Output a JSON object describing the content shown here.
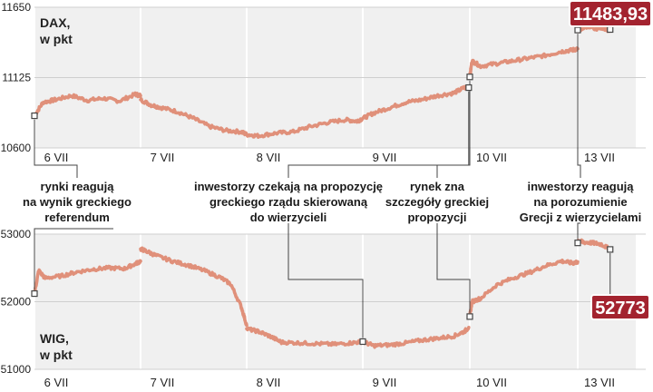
{
  "colors": {
    "line": "#e0907a",
    "panel": "#f0f0f0",
    "label_bg": "#a3232f",
    "label_border": "#ffffff",
    "connector": "#444444"
  },
  "chart_data": [
    {
      "type": "line",
      "title": "DAX,",
      "subtitle": "w pkt",
      "y_ticks": [
        10600,
        11125,
        11650
      ],
      "ylim": [
        10600,
        11650
      ],
      "x_labels": [
        "6 VII",
        "7 VII",
        "8 VII",
        "9 VII",
        "10 VII",
        "13 VII"
      ],
      "last_value": "11483,93",
      "series": [
        {
          "x": [
            0,
            0.08,
            0.2,
            0.35,
            0.5,
            0.65,
            0.8,
            0.95,
            1.0
          ],
          "y": [
            10840,
            10940,
            10960,
            10990,
            10955,
            10970,
            10950,
            11000,
            10990
          ]
        },
        {
          "x": [
            1.0,
            1.1,
            1.2,
            1.35,
            1.5,
            1.65,
            1.8,
            1.95,
            2.0
          ],
          "y": [
            10960,
            10920,
            10900,
            10870,
            10820,
            10760,
            10730,
            10720,
            10700
          ]
        },
        {
          "x": [
            2.0,
            2.1,
            2.25,
            2.4,
            2.55,
            2.7,
            2.85,
            2.95,
            3.0
          ],
          "y": [
            10700,
            10690,
            10710,
            10720,
            10760,
            10790,
            10810,
            10800,
            10820
          ]
        },
        {
          "x": [
            3.0,
            3.1,
            3.25,
            3.4,
            3.55,
            3.7,
            3.85,
            3.95,
            3.99
          ],
          "y": [
            10820,
            10860,
            10900,
            10940,
            10960,
            10990,
            11010,
            11050,
            11050
          ]
        },
        {
          "x": [
            4.0,
            4.02,
            4.1,
            4.25,
            4.4,
            4.55,
            4.7,
            4.85,
            4.95,
            5.0
          ],
          "y": [
            11130,
            11250,
            11210,
            11230,
            11250,
            11270,
            11290,
            11320,
            11330,
            11340
          ]
        },
        {
          "x": [
            5.0,
            5.02,
            5.1,
            5.2,
            5.3,
            5.4,
            5.5,
            5.55
          ],
          "y": [
            11480,
            11480,
            11500,
            11510,
            11490,
            11500,
            11480,
            11484
          ]
        }
      ]
    },
    {
      "type": "line",
      "title": "WIG,",
      "subtitle": "w pkt",
      "y_ticks": [
        51000,
        52000,
        53000
      ],
      "ylim": [
        51000,
        53000
      ],
      "x_labels": [
        "6 VII",
        "7 VII",
        "8 VII",
        "9 VII",
        "10 VII",
        "13 VII"
      ],
      "last_value": "52773",
      "series": [
        {
          "x": [
            0,
            0.04,
            0.1,
            0.25,
            0.4,
            0.55,
            0.7,
            0.85,
            0.95,
            1.0
          ],
          "y": [
            52120,
            52460,
            52350,
            52380,
            52440,
            52480,
            52500,
            52490,
            52560,
            52600
          ]
        },
        {
          "x": [
            1.0,
            1.05,
            1.15,
            1.3,
            1.45,
            1.6,
            1.75,
            1.85,
            1.95,
            2.0
          ],
          "y": [
            52780,
            52750,
            52680,
            52600,
            52540,
            52460,
            52360,
            52260,
            51920,
            51650
          ]
        },
        {
          "x": [
            2.0,
            2.1,
            2.2,
            2.3,
            2.45,
            2.6,
            2.75,
            2.9,
            3.0
          ],
          "y": [
            51600,
            51560,
            51490,
            51400,
            51390,
            51380,
            51370,
            51390,
            51410
          ]
        },
        {
          "x": [
            3.0,
            3.1,
            3.25,
            3.4,
            3.55,
            3.7,
            3.85,
            3.95,
            3.99
          ],
          "y": [
            51410,
            51350,
            51360,
            51390,
            51430,
            51460,
            51490,
            51560,
            51620
          ]
        },
        {
          "x": [
            4.0,
            4.02,
            4.1,
            4.25,
            4.4,
            4.55,
            4.7,
            4.85,
            4.95,
            5.0
          ],
          "y": [
            51780,
            52000,
            52050,
            52250,
            52350,
            52430,
            52530,
            52600,
            52570,
            52590
          ]
        },
        {
          "x": [
            5.0,
            5.02,
            5.1,
            5.25,
            5.4,
            5.55
          ],
          "y": [
            52870,
            52900,
            52880,
            52870,
            52850,
            52773
          ]
        }
      ]
    }
  ],
  "annotations": [
    {
      "lines": [
        "rynki reagują",
        "na wynik greckiego",
        "referendum"
      ]
    },
    {
      "lines": [
        "inwestorzy czekają na propozycję",
        "greckiego rządu skierowaną",
        "do wierzycieli"
      ]
    },
    {
      "lines": [
        "rynek zna",
        "szczegóły greckiej",
        "propozycji"
      ]
    },
    {
      "lines": [
        "inwestorzy reagują",
        "na porozumienie",
        "Grecji z wierzycielami"
      ]
    }
  ]
}
